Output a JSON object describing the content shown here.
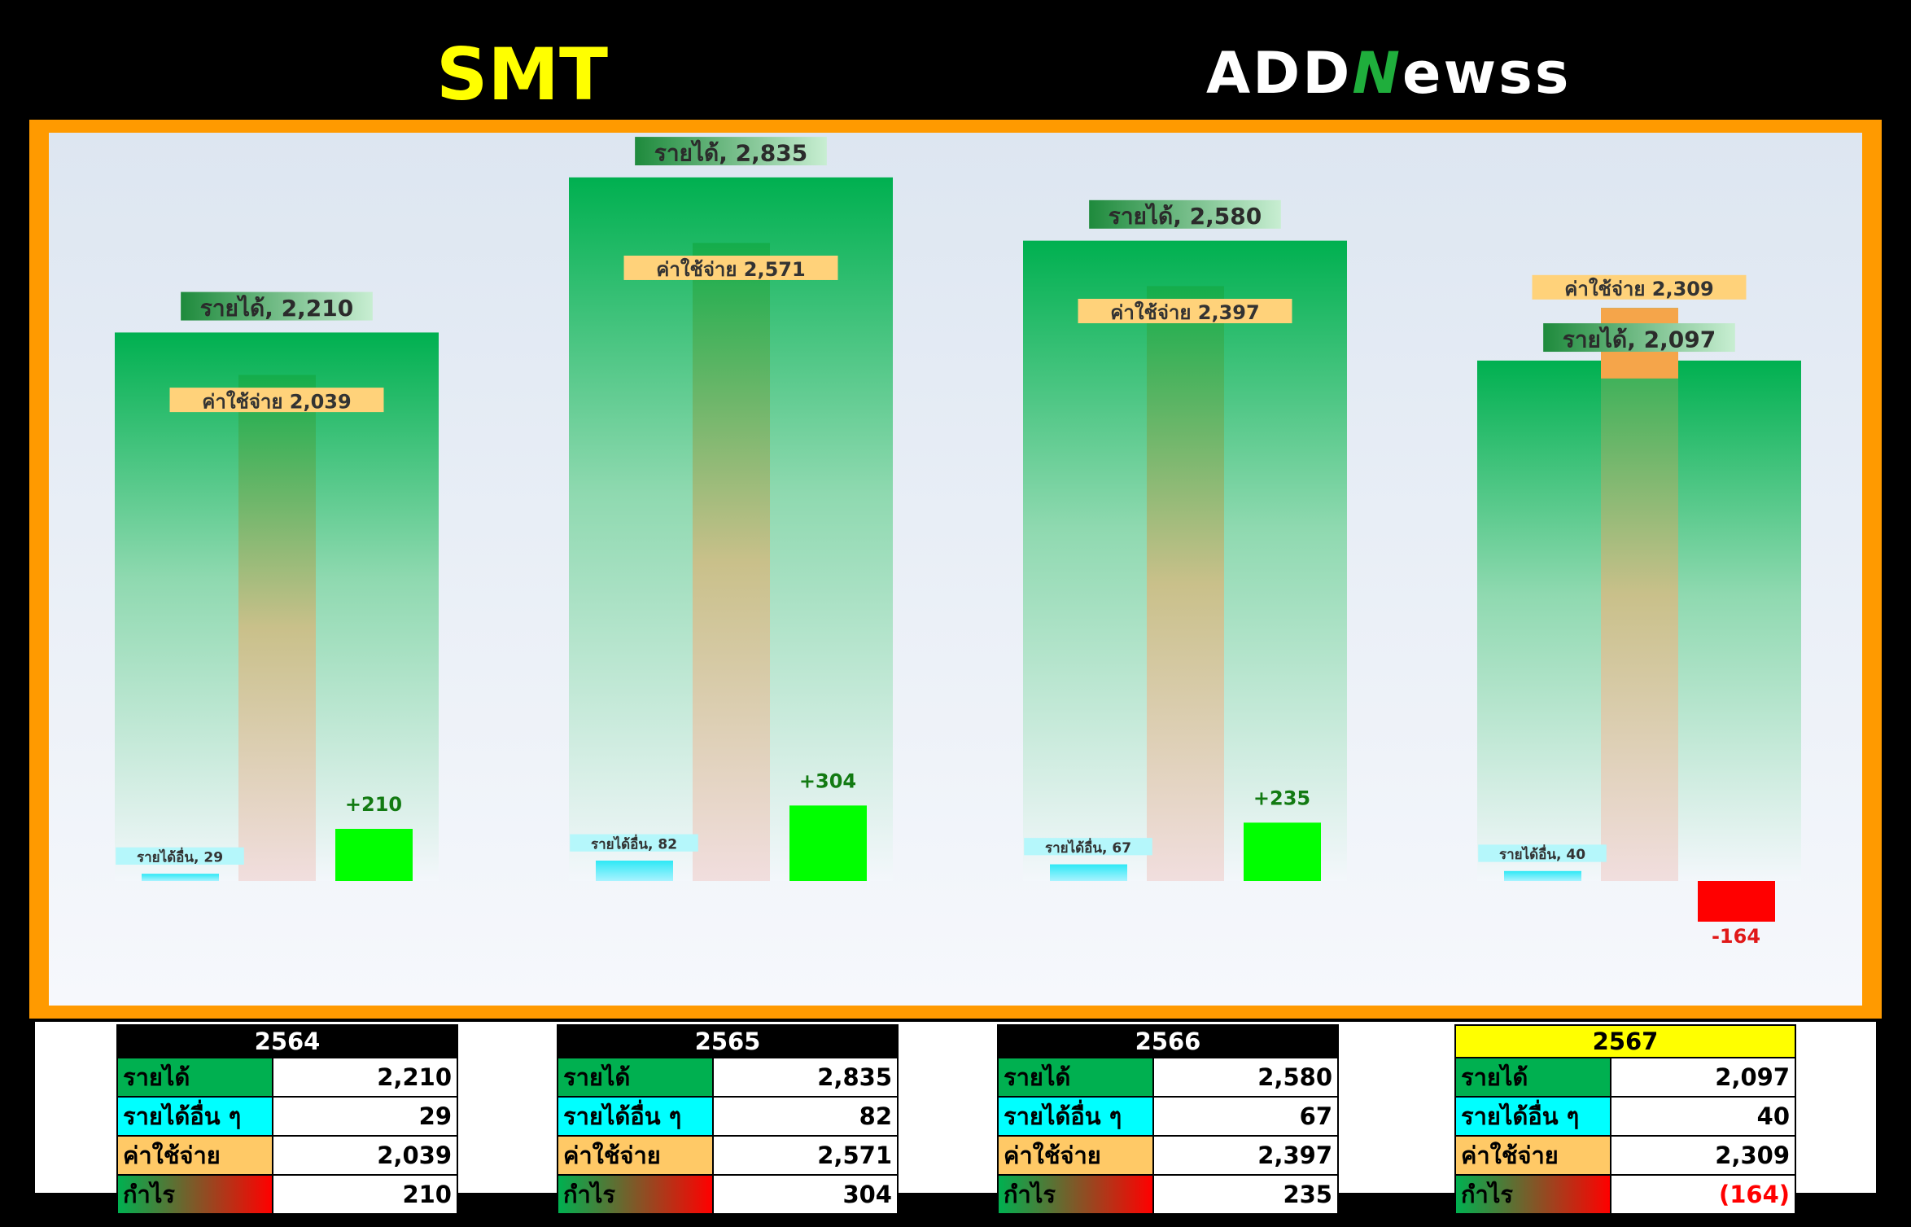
{
  "header": {
    "title": "SMT",
    "logo_text": "ADDNewss"
  },
  "colors": {
    "revenue": "#00b050",
    "other_income": "#00ffff",
    "expense": "#ffc966",
    "profit_positive": "#00ff00",
    "profit_negative": "#ff0000",
    "frame": "#ff9a00",
    "highlight_year": "#ffff00"
  },
  "chart_data": {
    "type": "bar",
    "categories": [
      "2564",
      "2565",
      "2566",
      "2567"
    ],
    "series": [
      {
        "name": "รายได้",
        "values": [
          2210,
          2835,
          2580,
          2097
        ]
      },
      {
        "name": "รายได้อื่น ๆ",
        "values": [
          29,
          82,
          67,
          40
        ]
      },
      {
        "name": "ค่าใช้จ่าย",
        "values": [
          2039,
          2571,
          2397,
          2309
        ]
      },
      {
        "name": "กำไร",
        "values": [
          210,
          304,
          235,
          -164
        ]
      }
    ],
    "labels": {
      "revenue": [
        "รายได้, 2,210",
        "รายได้, 2,835",
        "รายได้, 2,580",
        "รายได้, 2,097"
      ],
      "other_income": [
        "รายได้อื่น, 29",
        "รายได้อื่น, 82",
        "รายได้อื่น, 67",
        "รายได้อื่น, 40"
      ],
      "expense": [
        "ค่าใช้จ่าย  2,039",
        "ค่าใช้จ่าย  2,571",
        "ค่าใช้จ่าย  2,397",
        "ค่าใช้จ่าย  2,309"
      ],
      "profit": [
        "+210",
        "+304",
        "+235",
        "-164"
      ]
    }
  },
  "tables": [
    {
      "year": "2564",
      "highlight": false,
      "rows": [
        {
          "label": "รายได้",
          "value": "2,210",
          "kind": "rev"
        },
        {
          "label": "รายได้อื่น ๆ",
          "value": "29",
          "kind": "oth"
        },
        {
          "label": "ค่าใช้จ่าย",
          "value": "2,039",
          "kind": "exp"
        },
        {
          "label": "กำไร",
          "value": "210",
          "kind": "prf"
        }
      ]
    },
    {
      "year": "2565",
      "highlight": false,
      "rows": [
        {
          "label": "รายได้",
          "value": "2,835",
          "kind": "rev"
        },
        {
          "label": "รายได้อื่น ๆ",
          "value": "82",
          "kind": "oth"
        },
        {
          "label": "ค่าใช้จ่าย",
          "value": "2,571",
          "kind": "exp"
        },
        {
          "label": "กำไร",
          "value": "304",
          "kind": "prf"
        }
      ]
    },
    {
      "year": "2566",
      "highlight": false,
      "rows": [
        {
          "label": "รายได้",
          "value": "2,580",
          "kind": "rev"
        },
        {
          "label": "รายได้อื่น ๆ",
          "value": "67",
          "kind": "oth"
        },
        {
          "label": "ค่าใช้จ่าย",
          "value": "2,397",
          "kind": "exp"
        },
        {
          "label": "กำไร",
          "value": "235",
          "kind": "prf"
        }
      ]
    },
    {
      "year": "2567",
      "highlight": true,
      "rows": [
        {
          "label": "รายได้",
          "value": "2,097",
          "kind": "rev"
        },
        {
          "label": "รายได้อื่น ๆ",
          "value": "40",
          "kind": "oth"
        },
        {
          "label": "ค่าใช้จ่าย",
          "value": "2,309",
          "kind": "exp"
        },
        {
          "label": "กำไร",
          "value": "(164)",
          "kind": "prf",
          "negative": true
        }
      ]
    }
  ]
}
